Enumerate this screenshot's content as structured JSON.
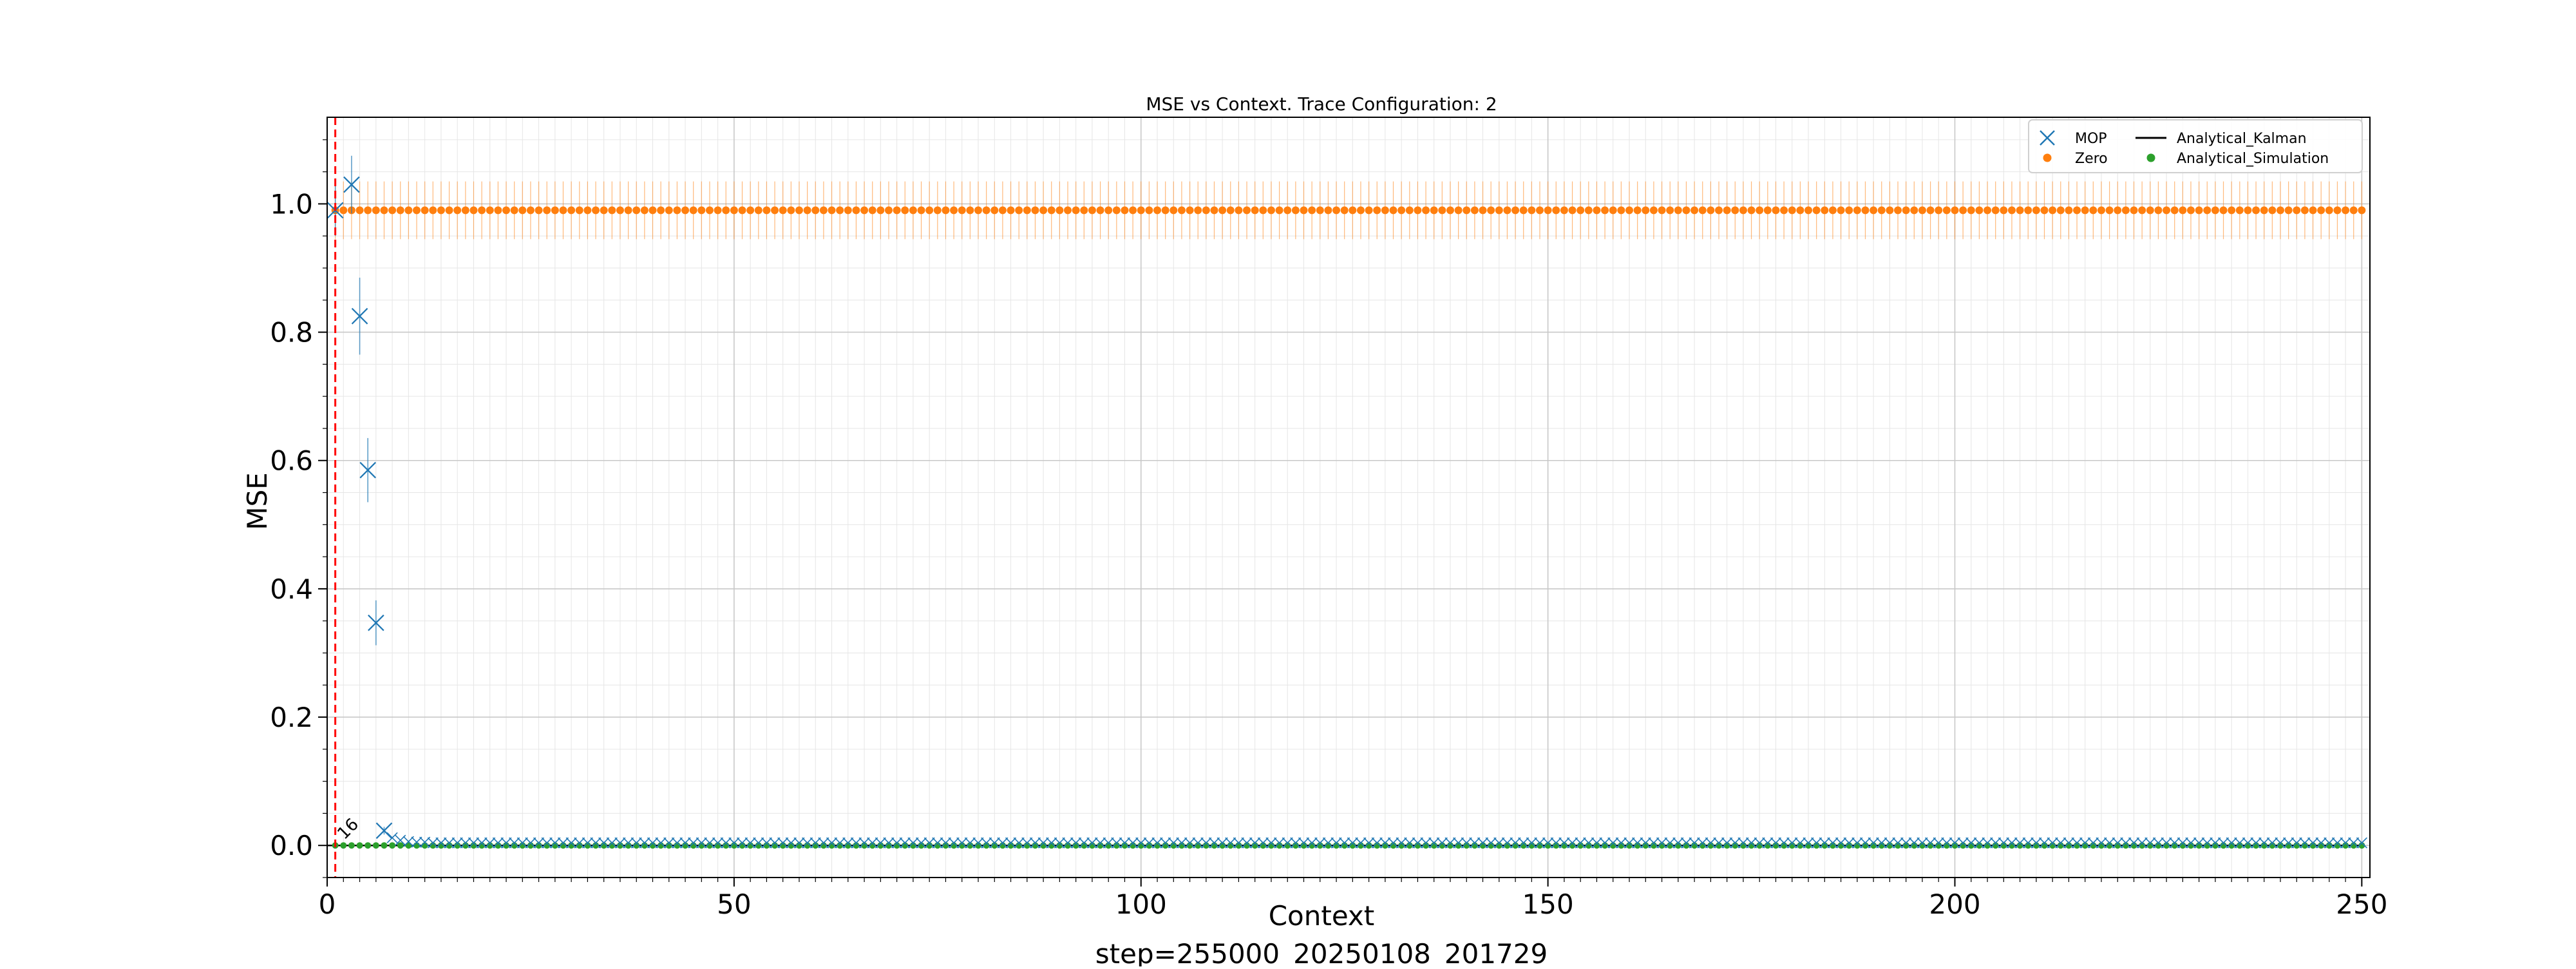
{
  "chart_data": {
    "type": "scatter",
    "title": "MSE vs Context. Trace Configuration: 2",
    "xlabel": "Context",
    "ylabel": "MSE",
    "footer": "step=255000_20250108_201729",
    "xlim": [
      0,
      251
    ],
    "ylim": [
      -0.05,
      1.135
    ],
    "x_ticks": [
      0,
      50,
      100,
      150,
      200,
      250
    ],
    "y_ticks": [
      0.0,
      0.2,
      0.4,
      0.6,
      0.8,
      1.0
    ],
    "x_tick_labels": [
      "0",
      "50",
      "100",
      "150",
      "200",
      "250"
    ],
    "y_tick_labels": [
      "0.0",
      "0.2",
      "0.4",
      "0.6",
      "0.8",
      "1.0"
    ],
    "grid": true,
    "minor_grid": true,
    "legend_position": "top-right",
    "vline": {
      "x": 1,
      "color": "#ff0000",
      "style": "dashed",
      "label": "16"
    },
    "series": [
      {
        "name": "MOP",
        "marker": "x",
        "color": "#1f77b4",
        "x": [
          1,
          3,
          4,
          5,
          6,
          7,
          8,
          9,
          10,
          11,
          12,
          13,
          14,
          15,
          16,
          17,
          18,
          19,
          20
        ],
        "values": [
          0.99,
          1.03,
          0.825,
          0.585,
          0.347,
          0.023,
          0.012,
          0.008,
          0.006,
          0.005,
          0.005,
          0.004,
          0.004,
          0.004,
          0.004,
          0.004,
          0.004,
          0.004,
          0.004
        ],
        "errors": [
          0.04,
          0.045,
          0.06,
          0.05,
          0.035,
          0.006,
          0.004,
          0.003,
          0.002,
          0.002,
          0.002,
          0.002,
          0.002,
          0.002,
          0.002,
          0.002,
          0.002,
          0.002,
          0.002
        ],
        "tail": {
          "from": 21,
          "to": 250,
          "value": 0.004,
          "error": 0.002
        }
      },
      {
        "name": "Zero",
        "marker": "dot",
        "color": "#ff7f0e",
        "from": 1,
        "to": 250,
        "value": 0.99,
        "error": 0.045
      },
      {
        "name": "Analytical_Kalman",
        "marker": "line",
        "color": "#000000",
        "from": 0,
        "to": 250,
        "value": 0.0
      },
      {
        "name": "Analytical_Simulation",
        "marker": "dot",
        "color": "#2ca02c",
        "from": 1,
        "to": 250,
        "value": 0.0
      }
    ]
  }
}
